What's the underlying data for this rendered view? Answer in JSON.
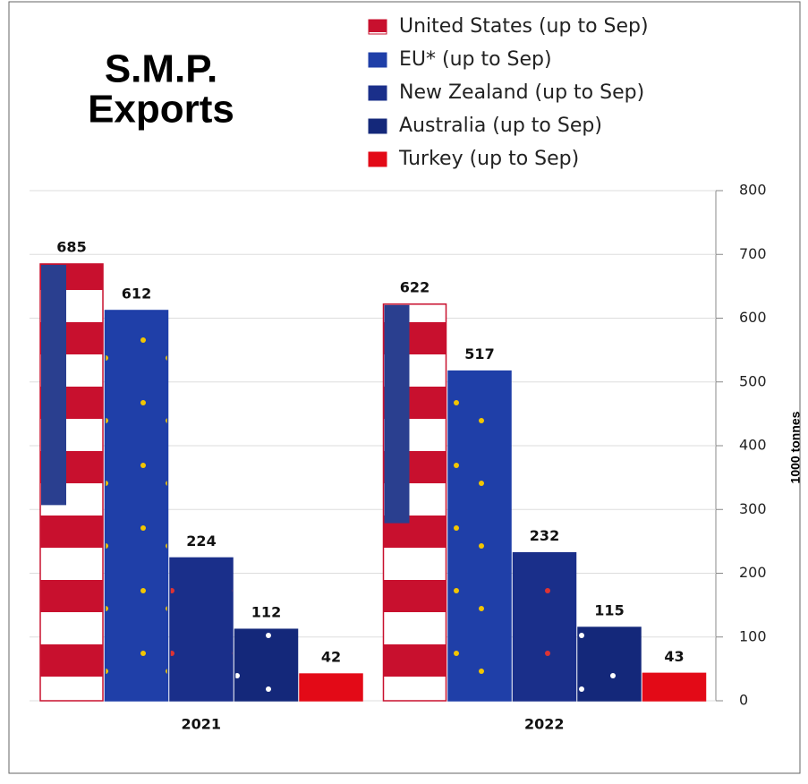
{
  "chart_data": {
    "type": "bar",
    "title": "S.M.P.",
    "subtitle": "Exports",
    "y_label": "1000 tonnes",
    "categories": [
      "2021",
      "2022"
    ],
    "series": [
      {
        "name": "United States (up to Sep)",
        "color": "#c8102e",
        "values": [
          685,
          622
        ]
      },
      {
        "name": "EU* (up to Sep)",
        "color": "#1f3fa8",
        "values": [
          612,
          517
        ]
      },
      {
        "name": "New Zealand (up to Sep)",
        "color": "#1a2f8a",
        "values": [
          224,
          232
        ]
      },
      {
        "name": "Australia (up to Sep)",
        "color": "#14287a",
        "values": [
          112,
          115
        ]
      },
      {
        "name": "Turkey (up to Sep)",
        "color": "#e30a17",
        "values": [
          42,
          43
        ]
      }
    ],
    "ylim": [
      0,
      800
    ],
    "yticks": [
      0,
      100,
      200,
      300,
      400,
      500,
      600,
      700,
      800
    ],
    "grid": true
  }
}
